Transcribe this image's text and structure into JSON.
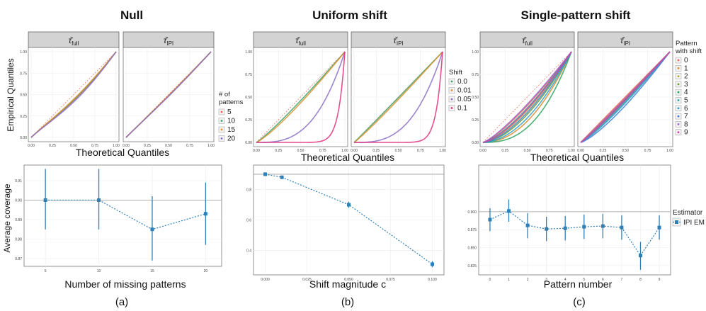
{
  "figure": {
    "columns": [
      {
        "title": "Null",
        "caption": "(a)"
      },
      {
        "title": "Uniform shift",
        "caption": "(b)"
      },
      {
        "title": "Single-pattern shift",
        "caption": "(c)"
      }
    ],
    "strip_full": "full",
    "strip_ipi": "IPI",
    "strip_tau": "τ̂",
    "qq_ylabel": "Empirical Quantiles",
    "qq_xlabel": "Theoretical Quantiles"
  },
  "chart_data": [
    {
      "type": "line",
      "id": "qq-null",
      "title": "Null",
      "xlabel": "Theoretical Quantiles",
      "ylabel": "Empirical Quantiles",
      "xlim": [
        0,
        1
      ],
      "ylim": [
        0,
        1
      ],
      "xticks": [
        "0.00",
        "0.25",
        "0.50",
        "0.75",
        "1.00"
      ],
      "yticks": [
        "0.00",
        "0.25",
        "0.50",
        "0.75",
        "1.00"
      ],
      "facets": [
        "full",
        "IPI"
      ],
      "legend_title": [
        "# of",
        "patterns"
      ],
      "series": [
        {
          "name": "5",
          "color": "#e8635b",
          "bow": [
            0.09,
            0.015
          ]
        },
        {
          "name": "10",
          "color": "#3aa56a",
          "bow": [
            0.08,
            0.02
          ]
        },
        {
          "name": "15",
          "color": "#e2902e",
          "bow": [
            0.07,
            0.015
          ]
        },
        {
          "name": "20",
          "color": "#8b6fc6",
          "bow": [
            0.11,
            0.025
          ]
        }
      ]
    },
    {
      "type": "line",
      "id": "qq-uniform",
      "title": "Uniform shift",
      "xlabel": "Theoretical Quantiles",
      "ylabel": "Empirical Quantiles",
      "xlim": [
        0,
        1
      ],
      "ylim": [
        0,
        1
      ],
      "xticks": [
        "0.00",
        "0.25",
        "0.50",
        "0.75",
        "1.00"
      ],
      "yticks": [
        "0.00",
        "0.25",
        "0.50",
        "0.75",
        "1.00"
      ],
      "facets": [
        "full",
        "IPI"
      ],
      "legend_title": [
        "Shift"
      ],
      "series": [
        {
          "name": "0.0",
          "color": "#3aa56a",
          "pow": [
            1.12,
            1.02
          ]
        },
        {
          "name": "0.01",
          "color": "#e2902e",
          "pow": [
            1.2,
            1.08
          ]
        },
        {
          "name": "0.05",
          "color": "#8b6fc6",
          "pow": [
            3.0,
            3.0
          ]
        },
        {
          "name": "0.1",
          "color": "#e0307e",
          "pow": [
            14,
            14
          ]
        }
      ]
    },
    {
      "type": "line",
      "id": "qq-single",
      "title": "Single-pattern shift",
      "xlabel": "Theoretical Quantiles",
      "ylabel": "Empirical Quantiles",
      "xlim": [
        0,
        1
      ],
      "ylim": [
        0,
        1
      ],
      "xticks": [
        "0.00",
        "0.25",
        "0.50",
        "0.75",
        "1.00"
      ],
      "yticks": [
        "0.00",
        "0.25",
        "0.50",
        "0.75",
        "1.00"
      ],
      "facets": [
        "full",
        "IPI"
      ],
      "legend_title": [
        "Pattern",
        "with shift"
      ],
      "series": [
        {
          "name": "0",
          "color": "#e8635b",
          "pow": [
            1.3,
            1.0
          ]
        },
        {
          "name": "1",
          "color": "#d98a2a",
          "pow": [
            2.1,
            1.05
          ]
        },
        {
          "name": "2",
          "color": "#b3a12e",
          "pow": [
            1.5,
            1.08
          ]
        },
        {
          "name": "3",
          "color": "#6a9e2d",
          "pow": [
            1.7,
            1.1
          ]
        },
        {
          "name": "4",
          "color": "#2ea35f",
          "pow": [
            2.6,
            1.1
          ]
        },
        {
          "name": "5",
          "color": "#24a39a",
          "pow": [
            1.4,
            1.15
          ]
        },
        {
          "name": "6",
          "color": "#2a9ec9",
          "pow": [
            1.9,
            1.2
          ]
        },
        {
          "name": "7",
          "color": "#3f7fd0",
          "pow": [
            1.6,
            1.3
          ]
        },
        {
          "name": "8",
          "color": "#9a62c9",
          "pow": [
            1.25,
            1.05
          ]
        },
        {
          "name": "9",
          "color": "#d245a8",
          "pow": [
            1.45,
            1.1
          ]
        }
      ]
    },
    {
      "type": "scatter",
      "id": "coverage-null",
      "xlabel": "Number of missing patterns",
      "ylabel": "Average coverage",
      "xlim": [
        3,
        21.5
      ],
      "ylim": [
        0.866,
        0.918
      ],
      "xticks": [
        5,
        10,
        15,
        20
      ],
      "xtick_labels": [
        "5",
        "10",
        "15",
        "20"
      ],
      "yticks": [
        0.87,
        0.88,
        0.89,
        0.9,
        0.91
      ],
      "ytick_labels": [
        "0.87",
        "0.88",
        "0.89",
        "0.90",
        "0.91"
      ],
      "reference": 0.9,
      "x": [
        5,
        10,
        15,
        20
      ],
      "y": [
        0.9,
        0.9,
        0.885,
        0.893
      ],
      "lower": [
        0.885,
        0.885,
        0.869,
        0.877
      ],
      "upper": [
        0.916,
        0.916,
        0.902,
        0.909
      ]
    },
    {
      "type": "scatter",
      "id": "coverage-uniform",
      "xlabel": "Shift magnitude c",
      "ylabel": "Average coverage",
      "xlim": [
        -0.007,
        0.107
      ],
      "ylim": [
        0.24,
        0.96
      ],
      "xticks": [
        0.0,
        0.025,
        0.05,
        0.075,
        0.1
      ],
      "xtick_labels": [
        "0.000",
        "0.025",
        "0.050",
        "0.075",
        "0.100"
      ],
      "yticks": [
        0.4,
        0.6,
        0.8
      ],
      "ytick_labels": [
        "0.4",
        "0.6",
        "0.8"
      ],
      "reference": 0.9,
      "x": [
        0.0,
        0.01,
        0.05,
        0.1
      ],
      "y": [
        0.9,
        0.88,
        0.7,
        0.31
      ],
      "lower": [
        0.89,
        0.87,
        0.68,
        0.29
      ],
      "upper": [
        0.91,
        0.89,
        0.72,
        0.33
      ]
    },
    {
      "type": "scatter",
      "id": "coverage-single",
      "xlabel": "Pattern number",
      "ylabel": "Average coverage",
      "xlim": [
        -0.6,
        9.6
      ],
      "ylim": [
        0.812,
        0.965
      ],
      "xticks": [
        0,
        1,
        2,
        3,
        4,
        5,
        6,
        7,
        8,
        9
      ],
      "xtick_labels": [
        "0",
        "1",
        "2",
        "3",
        "4",
        "5",
        "6",
        "7",
        "8",
        "9"
      ],
      "yticks": [
        0.825,
        0.85,
        0.875,
        0.9
      ],
      "ytick_labels": [
        "0.825",
        "0.850",
        "0.875",
        "0.900"
      ],
      "reference": 0.9,
      "legend_title": "Estimator",
      "legend_entry": "IPI EM",
      "x": [
        0,
        1,
        2,
        3,
        4,
        5,
        6,
        7,
        8,
        9
      ],
      "y": [
        0.889,
        0.901,
        0.881,
        0.876,
        0.877,
        0.879,
        0.88,
        0.878,
        0.839,
        0.878
      ],
      "lower": [
        0.873,
        0.886,
        0.863,
        0.859,
        0.86,
        0.862,
        0.863,
        0.861,
        0.819,
        0.861
      ],
      "upper": [
        0.905,
        0.917,
        0.898,
        0.893,
        0.894,
        0.896,
        0.897,
        0.895,
        0.858,
        0.895
      ]
    }
  ],
  "colors": {
    "coverage": "#2f7fb7",
    "reference": "#9a9a9a",
    "diag": "#e8635b"
  }
}
